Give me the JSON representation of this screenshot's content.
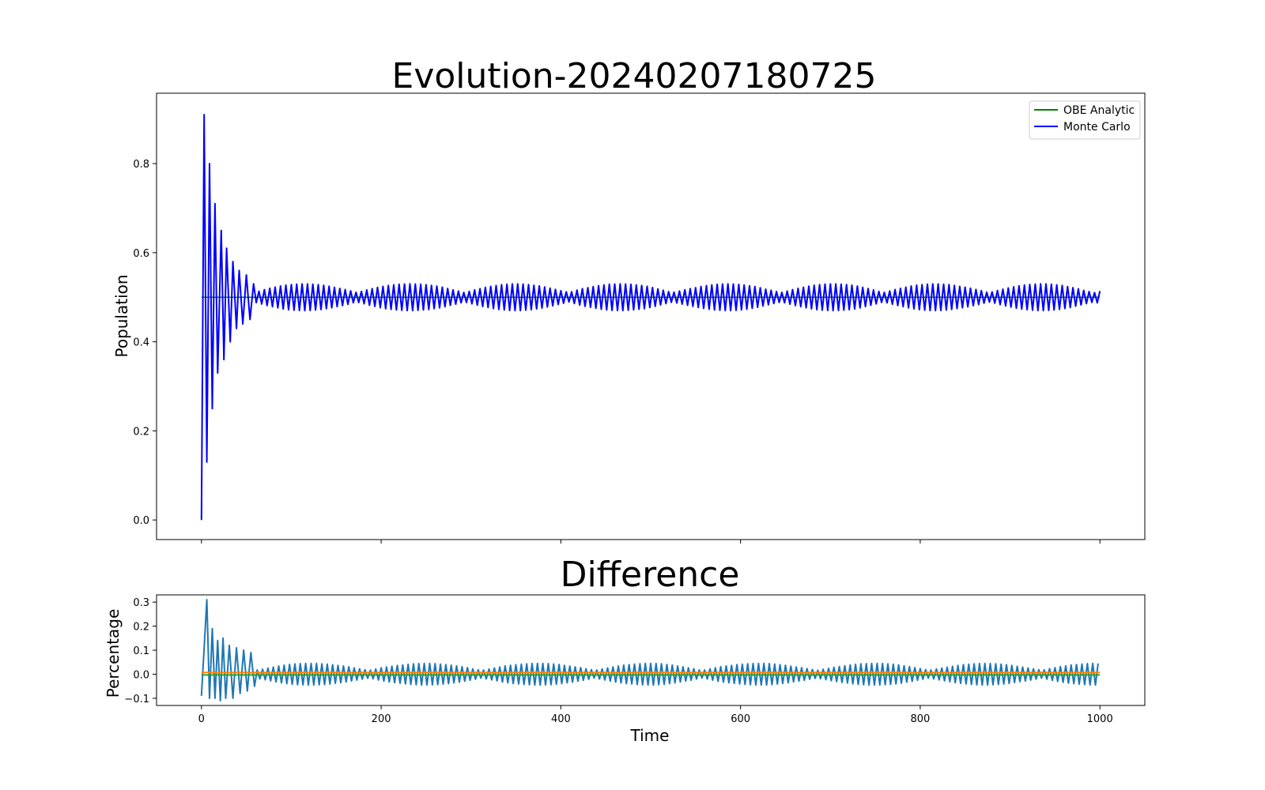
{
  "chart_data": [
    {
      "type": "line",
      "title": "Evolution-20240207180725",
      "xlabel": "",
      "ylabel": "Population",
      "xlim": [
        -50,
        1050
      ],
      "ylim": [
        -0.044,
        0.958
      ],
      "x_ticks": [
        0,
        200,
        400,
        600,
        800,
        1000
      ],
      "y_ticks": [
        0.0,
        0.2,
        0.4,
        0.6,
        0.8
      ],
      "y_tick_labels": [
        "0.0",
        "0.2",
        "0.4",
        "0.6",
        "0.8"
      ],
      "legend": {
        "placement": "top-right",
        "entries": [
          "OBE Analytic",
          "Monte Carlo"
        ]
      },
      "series": [
        {
          "name": "OBE Analytic",
          "color": "#008000",
          "description_points": {
            "x": [
              0,
              1000
            ],
            "y": [
              0.5,
              0.5
            ]
          }
        },
        {
          "name": "Monte Carlo",
          "color": "#0000ff",
          "peaks": [
            {
              "x": 3,
              "y": 0.91
            },
            {
              "x": 9,
              "y": 0.8
            },
            {
              "x": 15,
              "y": 0.71
            },
            {
              "x": 22,
              "y": 0.65
            },
            {
              "x": 28,
              "y": 0.61
            },
            {
              "x": 35,
              "y": 0.58
            },
            {
              "x": 42,
              "y": 0.56
            },
            {
              "x": 50,
              "y": 0.55
            },
            {
              "x": 58,
              "y": 0.53
            }
          ],
          "troughs": [
            {
              "x": 0,
              "y": 0.0
            },
            {
              "x": 6,
              "y": 0.13
            },
            {
              "x": 12,
              "y": 0.25
            },
            {
              "x": 18,
              "y": 0.33
            },
            {
              "x": 25,
              "y": 0.36
            },
            {
              "x": 32,
              "y": 0.4
            },
            {
              "x": 39,
              "y": 0.43
            },
            {
              "x": 46,
              "y": 0.44
            },
            {
              "x": 54,
              "y": 0.45
            }
          ],
          "steady_state": 0.5,
          "steady_amplitude": 0.03
        }
      ]
    },
    {
      "type": "line",
      "title": "Difference",
      "xlabel": "Time",
      "ylabel": "Percentage",
      "xlim": [
        -50,
        1050
      ],
      "ylim": [
        -0.13,
        0.33
      ],
      "x_ticks": [
        0,
        200,
        400,
        600,
        800,
        1000
      ],
      "x_tick_labels": [
        "0",
        "200",
        "400",
        "600",
        "800",
        "1000"
      ],
      "y_ticks": [
        -0.1,
        0.0,
        0.1,
        0.2,
        0.3
      ],
      "y_tick_labels": [
        "−0.1",
        "0.0",
        "0.1",
        "0.2",
        "0.3"
      ],
      "series": [
        {
          "color": "#1f77b4",
          "start": {
            "x": 0,
            "y": -0.09
          },
          "first_peak": {
            "x": 6,
            "y": 0.31
          },
          "steady_amplitude": 0.045
        },
        {
          "color": "#ff7f0e",
          "constant": 0.007
        },
        {
          "color": "#2ca02c",
          "constant": -0.003
        }
      ]
    }
  ]
}
